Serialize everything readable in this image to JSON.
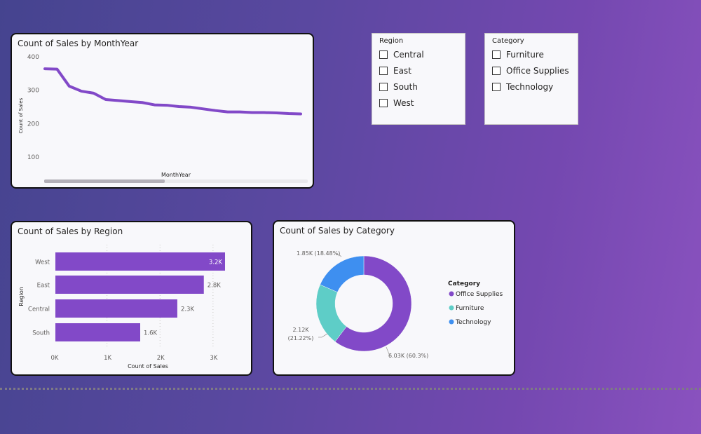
{
  "line_chart": {
    "title": "Count of Sales by MonthYear",
    "xlabel": "MonthYear",
    "ylabel": "Count of Sales",
    "color": "#8249c8",
    "y_ticks": [
      "100",
      "200",
      "300",
      "400"
    ]
  },
  "bar_chart": {
    "title": "Count of Sales by Region",
    "xlabel": "Count of Sales",
    "ylabel": "Region",
    "color": "#8249c8",
    "x_ticks": [
      "0K",
      "1K",
      "2K",
      "3K"
    ]
  },
  "donut_chart": {
    "title": "Count of Sales by Category",
    "legend_title": "Category",
    "labels": [
      "6.03K (60.3%)",
      "2.12K",
      "(21.22%)",
      "1.85K (18.48%)"
    ],
    "legend": [
      "Office Supplies",
      "Furniture",
      "Technology"
    ]
  },
  "region_slicer": {
    "title": "Region",
    "items": [
      {
        "label": "Central",
        "checked": false
      },
      {
        "label": "East",
        "checked": false
      },
      {
        "label": "South",
        "checked": false
      },
      {
        "label": "West",
        "checked": false
      }
    ]
  },
  "category_slicer": {
    "title": "Category",
    "items": [
      {
        "label": "Furniture",
        "checked": false
      },
      {
        "label": "Office Supplies",
        "checked": false
      },
      {
        "label": "Technology",
        "checked": false
      }
    ]
  },
  "chart_data": [
    {
      "type": "line",
      "title": "Count of Sales by MonthYear",
      "xlabel": "MonthYear",
      "ylabel": "Count of Sales",
      "ylim": [
        50,
        400
      ],
      "values": [
        362,
        361,
        310,
        295,
        289,
        270,
        267,
        264,
        261,
        254,
        253,
        249,
        247,
        242,
        237,
        233,
        233,
        231,
        231,
        230,
        228,
        227
      ],
      "grid": false
    },
    {
      "type": "bar",
      "title": "Count of Sales by Region",
      "xlabel": "Count of Sales",
      "ylabel": "Region",
      "categories": [
        "West",
        "East",
        "Central",
        "South"
      ],
      "values": [
        3200,
        2800,
        2300,
        1600
      ],
      "value_labels": [
        "3.2K",
        "2.8K",
        "2.3K",
        "1.6K"
      ],
      "xlim": [
        0,
        3200
      ]
    },
    {
      "type": "pie",
      "title": "Count of Sales by Category",
      "categories": [
        "Office Supplies",
        "Furniture",
        "Technology"
      ],
      "values": [
        6030,
        2120,
        1850
      ],
      "percentages": [
        60.3,
        21.22,
        18.48
      ],
      "colors": [
        "#8249c8",
        "#5ecdc7",
        "#3e8ff0"
      ],
      "legend_position": "right"
    }
  ]
}
